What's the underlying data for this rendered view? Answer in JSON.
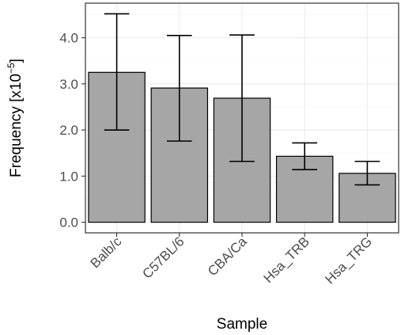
{
  "chart_data": {
    "type": "bar",
    "categories": [
      "Balb/c",
      "C57BL/6",
      "CBA/Ca",
      "Hsa_TRB",
      "Hsa_TRG"
    ],
    "values": [
      3.25,
      2.91,
      2.69,
      1.43,
      1.06
    ],
    "error_low": [
      2.0,
      1.76,
      1.32,
      1.14,
      0.81
    ],
    "error_high": [
      4.52,
      4.05,
      4.06,
      1.72,
      1.32
    ],
    "xlabel": "Sample",
    "ylabel_main": "Frequency [x10",
    "ylabel_exp": "−5",
    "ylabel_close": "]",
    "yticks": [
      0.0,
      1.0,
      2.0,
      3.0,
      4.0
    ],
    "ytick_labels": [
      "0.0",
      "1.0",
      "2.0",
      "3.0",
      "4.0"
    ],
    "ylim": [
      -0.23,
      4.75
    ],
    "grid": true,
    "bar_color": "#a6a6a6"
  }
}
